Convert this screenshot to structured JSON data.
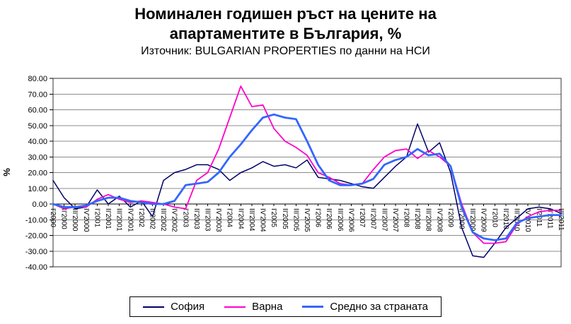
{
  "header": {
    "title_line1": "Номинален годишен ръст на цените на",
    "title_line2": "апартаментите в България, %",
    "subtitle": "Източник: BULGARIAN PROPERTIES по данни на НСИ"
  },
  "chart_data": {
    "type": "line",
    "title": "Номинален годишен ръст на цените на апартаментите в България, %",
    "subtitle": "Източник: BULGARIAN PROPERTIES по данни на НСИ",
    "xlabel": "",
    "ylabel": "%",
    "ylim": [
      -40,
      80
    ],
    "y_tick_step": 10,
    "grid": true,
    "legend_position": "bottom",
    "y_tick_labels": [
      "80.00",
      "70.00",
      "60.00",
      "50.00",
      "40.00",
      "30.00",
      "20.00",
      "10.00",
      "0.00",
      "-10.00",
      "-20.00",
      "-30.00",
      "-40.00"
    ],
    "categories": [
      "I'2000",
      "II'2000",
      "III'2000",
      "IV'2000",
      "I'2001",
      "II'2001",
      "III'2001",
      "IV'2001",
      "I'2002",
      "II'2002",
      "III'2002",
      "IV'2002",
      "I'2003",
      "II'2003",
      "III'2003",
      "IV'2003",
      "I'2004",
      "II'2004",
      "III'2004",
      "IV'2004",
      "I'2005",
      "II'2005",
      "III'2005",
      "IV'2005",
      "I'2006",
      "II'2006",
      "III'2006",
      "IV'2006",
      "I'2007",
      "II'2007",
      "III'2007",
      "IV'2007",
      "I'2008",
      "II'2008",
      "III'2008",
      "IV'2008",
      "I'2009",
      "II'2009",
      "III'2009",
      "IV'2009",
      "I'2010",
      "II'2010",
      "III'2010",
      "IV'2010",
      "I'2011",
      "II'2011",
      "III'2011"
    ],
    "series": [
      {
        "name": "София",
        "color": "#000066",
        "width": 1.5,
        "values": [
          15,
          4,
          -3,
          -2,
          9,
          0,
          5,
          -2,
          2,
          -8,
          15,
          20,
          22,
          25,
          25,
          22,
          15,
          20,
          23,
          27,
          24,
          25,
          23,
          28,
          17,
          16,
          15,
          13,
          11,
          10,
          17,
          24,
          30,
          51,
          33,
          39,
          20,
          -15,
          -33,
          -34,
          -25,
          -15,
          -9,
          -3,
          -2,
          -3,
          -6
        ]
      },
      {
        "name": "Варна",
        "color": "#FF00CC",
        "width": 1.8,
        "values": [
          0,
          -3,
          -2,
          -2,
          3,
          6,
          3,
          1,
          2,
          1,
          0,
          -2,
          -3,
          15,
          20,
          35,
          55,
          75,
          62,
          63,
          48,
          40,
          36,
          31,
          20,
          17,
          13,
          12,
          13,
          22,
          30,
          34,
          35,
          29,
          34,
          30,
          24,
          0,
          -18,
          -25,
          -25,
          -24,
          -13,
          -8,
          -5,
          -4,
          -4
        ]
      },
      {
        "name": "Средно за страната",
        "color": "#3366FF",
        "width": 2.8,
        "values": [
          0,
          -2,
          -2,
          -1,
          2,
          4,
          4,
          2,
          1,
          0,
          0,
          2,
          12,
          13,
          14,
          20,
          30,
          38,
          47,
          55,
          57,
          55,
          54,
          40,
          25,
          15,
          12,
          12,
          13,
          16,
          25,
          28,
          30,
          35,
          31,
          32,
          24,
          -2,
          -18,
          -22,
          -23,
          -22,
          -12,
          -9,
          -8,
          -7,
          -7
        ]
      }
    ]
  }
}
